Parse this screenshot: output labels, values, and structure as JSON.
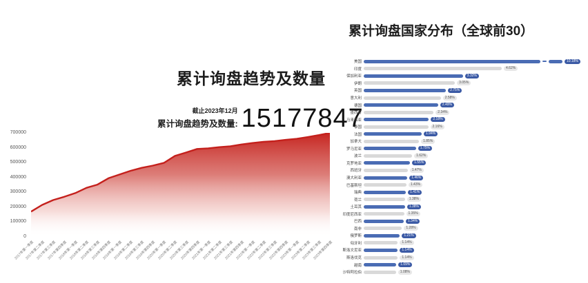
{
  "page": {
    "background": "#ffffff"
  },
  "left_chart": {
    "title": "累计询盘趋势及数量",
    "as_of": "截止2023年12月",
    "stat_label": "累计询盘趋势及数量:",
    "stat_value": "15177847"
  },
  "right_chart": {
    "title": "累计询盘国家分布（全球前30）"
  },
  "colors": {
    "line": "#c4201c",
    "fill_top": "#c5211c",
    "bar_blue": "#4a6cb4",
    "bar_gray": "#d9d9d9",
    "pill_blue": "#3b5aa5",
    "pill_gray": "#e7e7e7"
  },
  "chart_data": [
    {
      "type": "area",
      "title": "累计询盘趋势及数量",
      "annotation": {
        "as_of": "截止2023年12月",
        "label": "累计询盘趋势及数量:",
        "value": "15177847"
      },
      "x": [
        "2017年第一季度",
        "2017年第二季度",
        "2017年第三季度",
        "2017年第四季度",
        "2018年第一季度",
        "2018年第二季度",
        "2018年第三季度",
        "2018年第四季度",
        "2019年第一季度",
        "2019年第二季度",
        "2019年第三季度",
        "2019年第四季度",
        "2020年第一季度",
        "2020年第二季度",
        "2020年第三季度",
        "2020年第四季度",
        "2021年第一季度",
        "2021年第二季度",
        "2021年第三季度",
        "2021年第四季度",
        "2022年第一季度",
        "2022年第二季度",
        "2022年第三季度",
        "2022年第四季度",
        "2023年第一季度",
        "2023年第二季度",
        "2023年第三季度",
        "2023年第四季度"
      ],
      "values": [
        170000,
        215000,
        248000,
        270000,
        295000,
        330000,
        352000,
        395000,
        420000,
        445000,
        465000,
        480000,
        498000,
        545000,
        568000,
        592000,
        596000,
        604000,
        610000,
        622000,
        632000,
        640000,
        645000,
        653000,
        660000,
        672000,
        685000,
        700000
      ],
      "ylim": [
        0,
        700000
      ],
      "yticks": [
        0,
        100000,
        200000,
        300000,
        400000,
        500000,
        600000,
        700000
      ],
      "grid": false,
      "legend": false
    },
    {
      "type": "bar",
      "orientation": "horizontal",
      "title": "累计询盘国家分布（全球前30）",
      "categories": [
        "美国",
        "印度",
        "保加利亚",
        "伊朗",
        "英国",
        "意大利",
        "德国",
        "墨西哥",
        "马来西亚",
        "泰国",
        "法国",
        "加拿大",
        "罗马尼亚",
        "波兰",
        "克罗地亚",
        "西班牙",
        "澳大利亚",
        "巴基斯坦",
        "瑞典",
        "荷兰",
        "土耳其",
        "印度尼西亚",
        "巴西",
        "南非",
        "俄罗斯",
        "匈牙利",
        "斯洛文尼亚",
        "斯洛伐克",
        "越南",
        "沙特阿拉伯"
      ],
      "values": [
        10.18,
        4.62,
        3.32,
        3.05,
        2.75,
        2.58,
        2.49,
        2.34,
        2.18,
        2.16,
        1.94,
        1.85,
        1.75,
        1.62,
        1.55,
        1.47,
        1.46,
        1.43,
        1.41,
        1.38,
        1.38,
        1.35,
        1.34,
        1.28,
        1.21,
        1.14,
        1.14,
        1.14,
        1.09,
        1.08
      ],
      "labels": [
        "10.18%",
        "4.62%",
        "3.32%",
        "3.05%",
        "2.75%",
        "2.58%",
        "2.49%",
        "2.34%",
        "2.18%",
        "2.16%",
        "1.94%",
        "1.85%",
        "1.75%",
        "1.62%",
        "1.55%",
        "1.47%",
        "1.46%",
        "1.43%",
        "1.41%",
        "1.38%",
        "1.38%",
        "1.35%",
        "1.34%",
        "1.28%",
        "1.21%",
        "1.14%",
        "1.14%",
        "1.14%",
        "1.09%",
        "1.08%"
      ],
      "unit": "%",
      "first_bar_truncated": true,
      "alternating_row_colors": [
        "#4a6cb4",
        "#d9d9d9"
      ],
      "legend": false
    }
  ]
}
